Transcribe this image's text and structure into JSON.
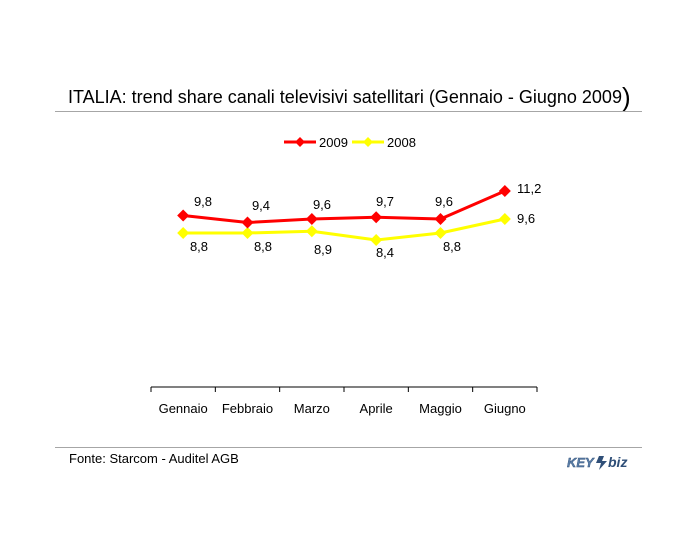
{
  "header": {
    "title_main": "ITALIA: trend share canali televisivi satellitari (Gennaio - Giugno 2009",
    "title_paren": ")"
  },
  "footer": {
    "source": "Fonte: Starcom - Auditel AGB",
    "logo_left": "KEY",
    "logo_right": "biz"
  },
  "chart_data": {
    "type": "line",
    "title": "ITALIA: trend share canali televisivi satellitari (Gennaio - Giugno 2009)",
    "xlabel": "",
    "ylabel": "",
    "categories": [
      "Gennaio",
      "Febbraio",
      "Marzo",
      "Aprile",
      "Maggio",
      "Giugno"
    ],
    "ylim": [
      0,
      12
    ],
    "grid": false,
    "legend_position": "top-center",
    "series": [
      {
        "name": "2009",
        "color": "#ff0000",
        "marker": "diamond",
        "values": [
          9.8,
          9.4,
          9.6,
          9.7,
          9.6,
          11.2
        ],
        "labels": [
          "9,8",
          "9,4",
          "9,6",
          "9,7",
          "9,6",
          "11,2"
        ]
      },
      {
        "name": "2008",
        "color": "#ffff00",
        "marker": "diamond",
        "values": [
          8.8,
          8.8,
          8.9,
          8.4,
          8.8,
          9.6
        ],
        "labels": [
          "8,8",
          "8,8",
          "8,9",
          "8,4",
          "8,8",
          "9,6"
        ]
      }
    ]
  }
}
